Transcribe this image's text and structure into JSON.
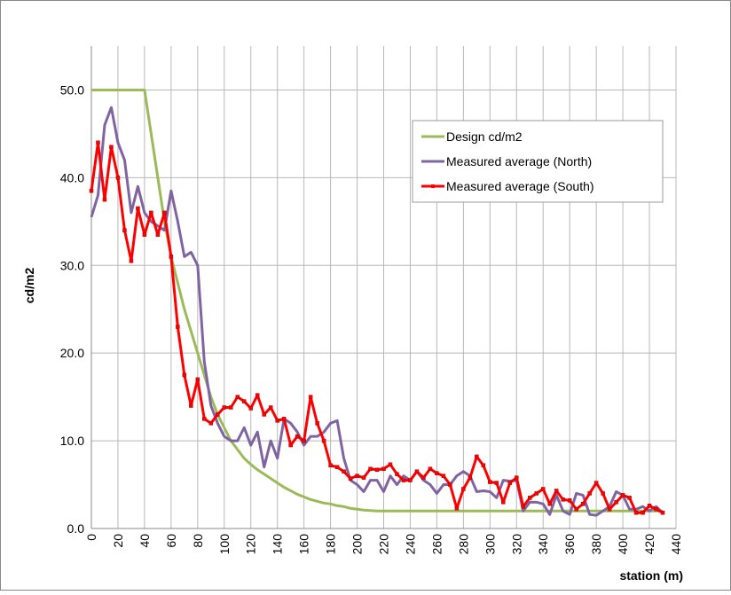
{
  "chart_data": {
    "type": "line",
    "ylabel": "cd/m2",
    "xlabel": "station (m)",
    "x": [
      0,
      5,
      10,
      15,
      20,
      25,
      30,
      35,
      40,
      45,
      50,
      55,
      60,
      65,
      70,
      75,
      80,
      85,
      90,
      95,
      100,
      105,
      110,
      115,
      120,
      125,
      130,
      135,
      140,
      145,
      150,
      155,
      160,
      165,
      170,
      175,
      180,
      185,
      190,
      195,
      200,
      205,
      210,
      215,
      220,
      225,
      230,
      235,
      240,
      245,
      250,
      255,
      260,
      265,
      270,
      275,
      280,
      285,
      290,
      295,
      300,
      305,
      310,
      315,
      320,
      325,
      330,
      335,
      340,
      345,
      350,
      355,
      360,
      365,
      370,
      375,
      380,
      385,
      390,
      395,
      400,
      405,
      410,
      415,
      420,
      425,
      430
    ],
    "series": [
      {
        "name": "Design cd/m2",
        "color": "#9bbb59",
        "marker": false,
        "values": [
          50,
          50,
          50,
          50,
          50,
          50,
          50,
          50,
          50,
          45,
          40,
          35,
          31,
          28,
          25,
          22.5,
          20,
          17.5,
          15,
          13,
          11.5,
          10,
          9,
          8,
          7.3,
          6.7,
          6.2,
          5.7,
          5.2,
          4.7,
          4.3,
          3.9,
          3.6,
          3.3,
          3.1,
          2.9,
          2.8,
          2.6,
          2.5,
          2.3,
          2.2,
          2.1,
          2.05,
          2,
          2,
          2,
          2,
          2,
          2,
          2,
          2,
          2,
          2,
          2,
          2,
          2,
          2,
          2,
          2,
          2,
          2,
          2,
          2,
          2,
          2,
          2,
          2,
          2,
          2,
          2,
          2,
          2,
          2,
          2,
          2,
          2,
          2,
          2,
          2,
          2,
          2,
          2,
          2,
          2,
          2,
          2,
          2
        ]
      },
      {
        "name": "Measured average (North)",
        "color": "#8064a2",
        "marker": false,
        "values": [
          35.5,
          38,
          46,
          48,
          44,
          42,
          36,
          39,
          36,
          35,
          34.5,
          34,
          38.5,
          35,
          31,
          31.5,
          30,
          19,
          14,
          12,
          10.5,
          10,
          10,
          11.5,
          9.5,
          11,
          7,
          10,
          8,
          12.5,
          12,
          11,
          9.5,
          10.5,
          10.5,
          11,
          12,
          12.3,
          8,
          5.5,
          5,
          4.2,
          5.5,
          5.5,
          4.2,
          6,
          5,
          6,
          5.5,
          6.5,
          5.5,
          5,
          4,
          5,
          5,
          6,
          6.5,
          6,
          4.2,
          4.3,
          4.2,
          3.5,
          5.5,
          5.4,
          5.5,
          2,
          3,
          3,
          2.8,
          1.6,
          3.8,
          2,
          1.6,
          4,
          3.8,
          1.6,
          1.5,
          2,
          2.5,
          4.2,
          3.8,
          2.2,
          2.2,
          2.5,
          2,
          2.5,
          1.8
        ]
      },
      {
        "name": "Measured average (South)",
        "color": "#ff0000",
        "marker": true,
        "values": [
          38.5,
          44,
          37.5,
          43.5,
          40,
          34,
          30.5,
          36.5,
          33.5,
          36,
          33.5,
          36,
          31,
          23,
          17.5,
          14,
          17,
          12.5,
          12,
          13,
          13.8,
          13.8,
          15,
          14.5,
          13.7,
          15.2,
          13,
          13.8,
          12.3,
          12.5,
          9.5,
          10.5,
          10,
          15,
          12,
          10,
          7.2,
          7,
          6.5,
          5.7,
          6,
          5.8,
          6.8,
          6.7,
          6.8,
          7.3,
          6.2,
          5.5,
          5.5,
          6.5,
          5.8,
          6.8,
          6.3,
          6,
          5,
          2.3,
          4.5,
          5.8,
          8.2,
          7.2,
          5.3,
          5.2,
          3,
          5.2,
          5.8,
          2.5,
          3.5,
          4,
          4.5,
          2.8,
          4.3,
          3.3,
          3.2,
          2.2,
          2.8,
          4,
          5.2,
          4,
          2.2,
          3,
          3.8,
          3.5,
          1.8,
          1.8,
          2.6,
          2.2,
          1.8
        ]
      }
    ],
    "xlim": [
      0,
      440
    ],
    "xticks": [
      0,
      20,
      40,
      60,
      80,
      100,
      120,
      140,
      160,
      180,
      200,
      220,
      240,
      260,
      280,
      300,
      320,
      340,
      360,
      380,
      400,
      420,
      440
    ],
    "ylim": [
      0,
      55
    ],
    "yticks": [
      {
        "value": 0,
        "label": "0.0"
      },
      {
        "value": 10,
        "label": "10.0"
      },
      {
        "value": 20,
        "label": "20.0"
      },
      {
        "value": 30,
        "label": "30.0"
      },
      {
        "value": 40,
        "label": "40.0"
      },
      {
        "value": 50,
        "label": "50.0"
      }
    ],
    "grid": true,
    "legend": "upper right"
  }
}
